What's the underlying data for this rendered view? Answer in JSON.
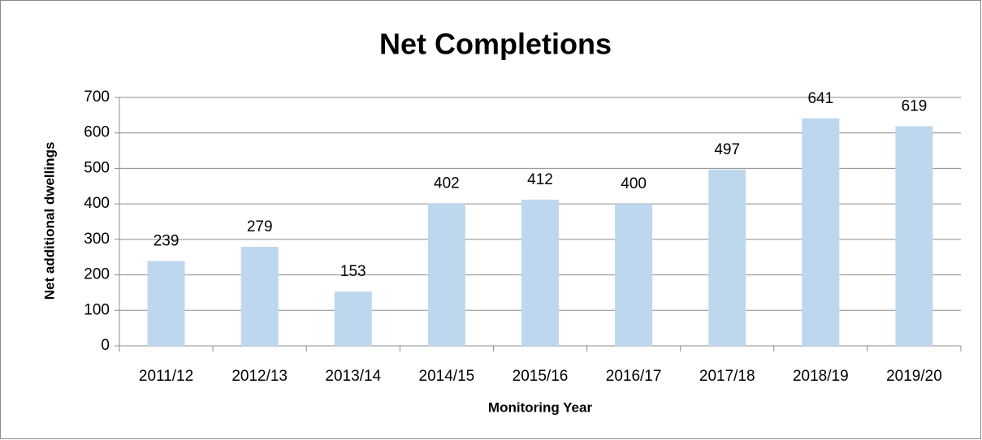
{
  "chart_data": {
    "type": "bar",
    "title": "Net Completions",
    "x_label": "Monitoring Year",
    "y_label": "Net additional dwellings",
    "categories": [
      "2011/12",
      "2012/13",
      "2013/14",
      "2014/15",
      "2015/16",
      "2016/17",
      "2017/18",
      "2018/19",
      "2019/20"
    ],
    "values": [
      239,
      279,
      153,
      402,
      412,
      400,
      497,
      641,
      619
    ],
    "color": "#bdd7ee",
    "ylim": [
      0,
      700
    ],
    "yticks": [
      0,
      100,
      200,
      300,
      400,
      500,
      600,
      700
    ],
    "grid": true,
    "data_labels": true
  }
}
